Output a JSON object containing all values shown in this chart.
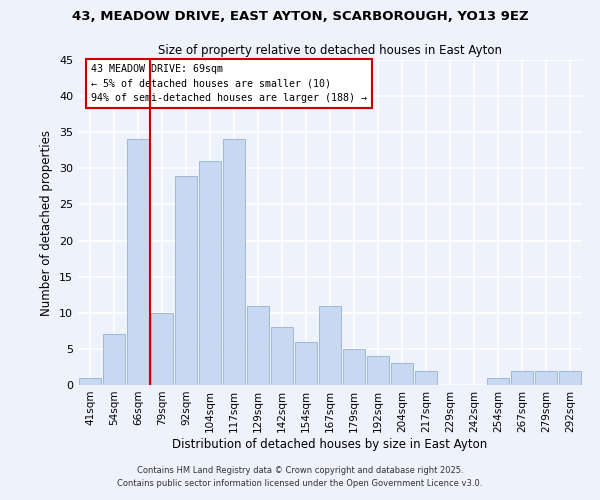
{
  "title1": "43, MEADOW DRIVE, EAST AYTON, SCARBOROUGH, YO13 9EZ",
  "title2": "Size of property relative to detached houses in East Ayton",
  "xlabel": "Distribution of detached houses by size in East Ayton",
  "ylabel": "Number of detached properties",
  "bar_labels": [
    "41sqm",
    "54sqm",
    "66sqm",
    "79sqm",
    "92sqm",
    "104sqm",
    "117sqm",
    "129sqm",
    "142sqm",
    "154sqm",
    "167sqm",
    "179sqm",
    "192sqm",
    "204sqm",
    "217sqm",
    "229sqm",
    "242sqm",
    "254sqm",
    "267sqm",
    "279sqm",
    "292sqm"
  ],
  "bar_values": [
    1,
    7,
    34,
    10,
    29,
    31,
    34,
    11,
    8,
    6,
    11,
    5,
    4,
    3,
    2,
    0,
    0,
    1,
    2,
    2,
    2
  ],
  "bar_color": "#c8d8f0",
  "bar_edge_color": "#a0b8d8",
  "vline_color": "#cc0000",
  "annotation_box_text": "43 MEADOW DRIVE: 69sqm\n← 5% of detached houses are smaller (10)\n94% of semi-detached houses are larger (188) →",
  "ylim": [
    0,
    45
  ],
  "yticks": [
    0,
    5,
    10,
    15,
    20,
    25,
    30,
    35,
    40,
    45
  ],
  "bg_color": "#eef2fb",
  "grid_color": "#ffffff",
  "footer1": "Contains HM Land Registry data © Crown copyright and database right 2025.",
  "footer2": "Contains public sector information licensed under the Open Government Licence v3.0."
}
